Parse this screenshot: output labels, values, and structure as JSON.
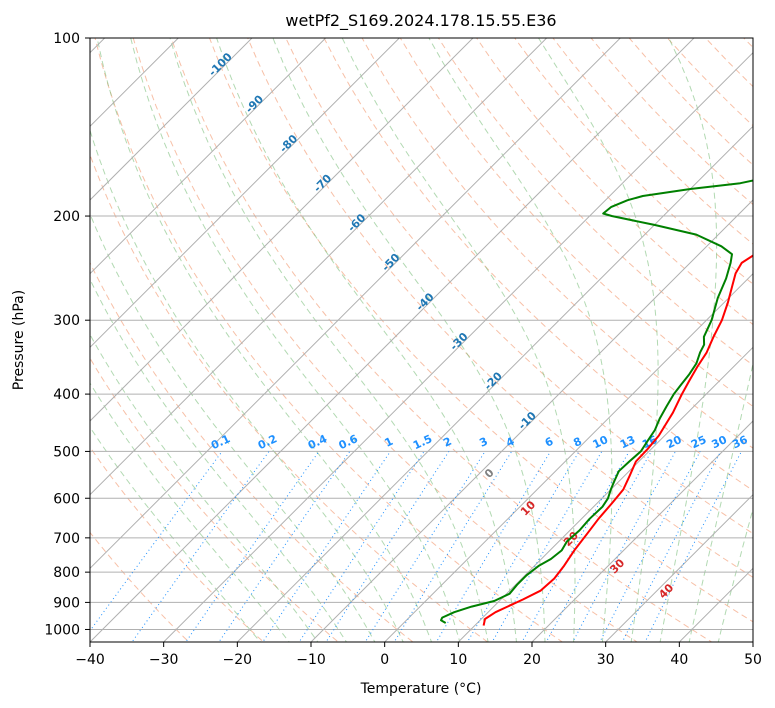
{
  "chart_data": {
    "type": "line",
    "subtype": "skew-T log-P diagram",
    "title": "wetPf2_S169.2024.178.15.55.E36",
    "xlabel": "Temperature (°C)",
    "ylabel": "Pressure (hPa)",
    "xlim": [
      -40,
      50
    ],
    "ylim": [
      1050,
      100
    ],
    "y_scale": "log",
    "grid": true,
    "x_ticks": [
      -40,
      -30,
      -20,
      -10,
      0,
      10,
      20,
      30,
      40,
      50
    ],
    "y_ticks": [
      100,
      200,
      300,
      400,
      500,
      600,
      700,
      800,
      900,
      1000
    ],
    "series": [
      {
        "color": "#FF0000",
        "points": [
          [
            11.2,
            985
          ],
          [
            10.5,
            960
          ],
          [
            11.0,
            935
          ],
          [
            13.0,
            890
          ],
          [
            14.2,
            860
          ],
          [
            14.4,
            820
          ],
          [
            14.0,
            780
          ],
          [
            13.3,
            735
          ],
          [
            12.8,
            690
          ],
          [
            12.3,
            650
          ],
          [
            12.0,
            610
          ],
          [
            11.7,
            580
          ],
          [
            10.7,
            550
          ],
          [
            9.6,
            520
          ],
          [
            9.5,
            495
          ],
          [
            9.2,
            470
          ],
          [
            8.6,
            450
          ],
          [
            8.0,
            430
          ],
          [
            6.7,
            400
          ],
          [
            5.9,
            380
          ],
          [
            5.1,
            360
          ],
          [
            4.4,
            340
          ],
          [
            3.2,
            320
          ],
          [
            2.1,
            300
          ],
          [
            0.5,
            280
          ],
          [
            -1.2,
            262
          ],
          [
            -2.4,
            250
          ],
          [
            -3.0,
            240
          ],
          [
            -2.2,
            230
          ],
          [
            0.0,
            220
          ],
          [
            2.5,
            210
          ],
          [
            4.5,
            200
          ],
          [
            6.0,
            190
          ],
          [
            6.2,
            178
          ],
          [
            5.4,
            165
          ],
          [
            4.5,
            150
          ],
          [
            5.5,
            140
          ],
          [
            7.5,
            130
          ],
          [
            10.0,
            125
          ],
          [
            13.0,
            118
          ],
          [
            16.5,
            110
          ],
          [
            20.0,
            100
          ]
        ]
      },
      {
        "color": "#008000",
        "points": [
          [
            5.7,
            975
          ],
          [
            4.7,
            965
          ],
          [
            4.5,
            955
          ],
          [
            5.4,
            935
          ],
          [
            7.0,
            915
          ],
          [
            9.3,
            895
          ],
          [
            10.4,
            870
          ],
          [
            10.2,
            840
          ],
          [
            10.2,
            810
          ],
          [
            10.6,
            780
          ],
          [
            11.3,
            760
          ],
          [
            11.6,
            735
          ],
          [
            11.1,
            710
          ],
          [
            11.3,
            680
          ],
          [
            11.1,
            650
          ],
          [
            11.2,
            620
          ],
          [
            10.8,
            600
          ],
          [
            10.0,
            580
          ],
          [
            9.3,
            560
          ],
          [
            8.6,
            540
          ],
          [
            8.7,
            520
          ],
          [
            8.9,
            500
          ],
          [
            8.4,
            480
          ],
          [
            7.9,
            460
          ],
          [
            7.0,
            440
          ],
          [
            6.3,
            420
          ],
          [
            5.6,
            400
          ],
          [
            5.3,
            385
          ],
          [
            5.0,
            370
          ],
          [
            4.5,
            355
          ],
          [
            3.5,
            340
          ],
          [
            3.0,
            330
          ],
          [
            1.9,
            320
          ],
          [
            0.7,
            300
          ],
          [
            -1.5,
            275
          ],
          [
            -3.0,
            255
          ],
          [
            -4.5,
            240
          ],
          [
            -5.5,
            232
          ],
          [
            -8.0,
            225
          ],
          [
            -13.0,
            215
          ],
          [
            -20.0,
            207
          ],
          [
            -27.0,
            200
          ],
          [
            -28.5,
            198
          ],
          [
            -28.3,
            193
          ],
          [
            -27.0,
            188
          ],
          [
            -25.5,
            185
          ],
          [
            -20.0,
            180
          ],
          [
            -14.0,
            176
          ],
          [
            -9.5,
            170
          ],
          [
            -8.8,
            160
          ],
          [
            -9.0,
            150
          ],
          [
            -8.2,
            140
          ],
          [
            -7.0,
            130
          ],
          [
            -5.5,
            122
          ],
          [
            -3.5,
            112
          ],
          [
            -1.0,
            100
          ]
        ]
      }
    ],
    "dry_adiabat_labels": [
      "-100",
      "-90",
      "-80",
      "-70",
      "-60",
      "-50",
      "-40",
      "-30",
      "-20",
      "-10"
    ],
    "mixing_ratio_labels": [
      "0.1",
      "0.2",
      "0.4",
      "0.6",
      "1",
      "1.5",
      "2",
      "3",
      "4",
      "6",
      "8",
      "10",
      "13",
      "16",
      "20",
      "25",
      "30",
      "36"
    ],
    "moist_adiabat_labels": [
      "0",
      "10",
      "20",
      "30",
      "40"
    ]
  }
}
